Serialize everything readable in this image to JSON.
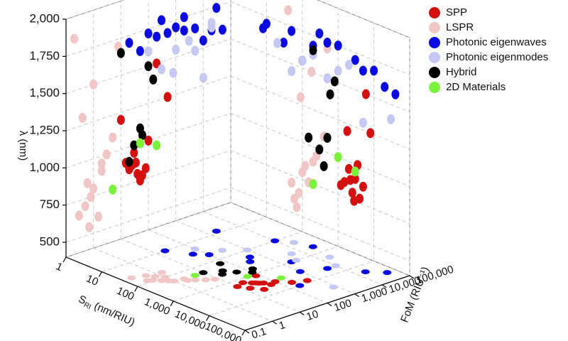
{
  "chart_data": {
    "type": "scatter3d",
    "xlabel": {
      "main": "S",
      "sub": "RI",
      "rest": " (nm/RIU)"
    },
    "ylabel": "FoM (RIU⁻¹)",
    "zlabel": "λ (nm)",
    "xscale": "log",
    "yscale": "log",
    "zscale": "linear",
    "xlim": [
      1,
      100000
    ],
    "xticks": [
      1,
      10,
      100,
      {
        "value": 1000,
        "label": "1,000"
      },
      {
        "value": 10000,
        "label": "10,000"
      },
      {
        "value": 100000,
        "label": "100,000"
      }
    ],
    "ylim": [
      0.1,
      100000
    ],
    "yticks": [
      0.1,
      1,
      10,
      100,
      {
        "value": 1000,
        "label": "1,000"
      },
      {
        "value": 10000,
        "label": "10,000"
      },
      {
        "value": 100000,
        "label": "100,000"
      }
    ],
    "zlim": [
      400,
      2000
    ],
    "zticks": [
      500,
      750,
      {
        "value": 1000,
        "label": "1,000"
      },
      {
        "value": 1250,
        "label": "1,250"
      },
      {
        "value": 1500,
        "label": "1,500"
      },
      {
        "value": 1750,
        "label": "1,750"
      },
      {
        "value": 2000,
        "label": "2,000"
      }
    ],
    "grid": true,
    "legend": "top-right",
    "series": [
      {
        "name": "SPP",
        "color": "#d40f0f",
        "x": [
          1500,
          2500,
          3000,
          4000,
          2000,
          1200,
          5000,
          3500,
          2800,
          1800,
          6000,
          2200,
          8000
        ],
        "y": [
          20,
          40,
          15,
          60,
          30,
          80,
          25,
          100,
          50,
          10,
          200,
          35,
          500
        ],
        "z": [
          850,
          800,
          900,
          780,
          950,
          820,
          870,
          1000,
          750,
          1200,
          1500,
          880,
          1250
        ]
      },
      {
        "name": "LSPR",
        "color": "#f0c6c6",
        "x": [
          50,
          100,
          200,
          80,
          300,
          150,
          60,
          400,
          120,
          250,
          90,
          180,
          40,
          500,
          70
        ],
        "y": [
          0.5,
          1,
          2,
          0.3,
          3,
          0.8,
          1.5,
          5,
          0.6,
          2,
          0.4,
          1,
          0.2,
          8,
          0.7
        ],
        "z": [
          700,
          800,
          900,
          650,
          1000,
          750,
          600,
          1100,
          850,
          950,
          1300,
          1500,
          1850,
          1700,
          550
        ]
      },
      {
        "name": "Photonic eigenwaves",
        "color": "#0a0ae0",
        "x": [
          10,
          50,
          200,
          1000,
          5000,
          20000,
          30,
          300,
          3000,
          100,
          10000,
          500,
          8,
          40000
        ],
        "y": [
          20,
          100,
          500,
          2000,
          5000,
          20000,
          50,
          300,
          1000,
          10000,
          200,
          30000,
          2000,
          50000
        ],
        "z": [
          1700,
          1720,
          1680,
          1750,
          1650,
          1600,
          1620,
          1780,
          1700,
          1550,
          1680,
          1740,
          1660,
          1580
        ]
      },
      {
        "name": "Photonic eigenmodes",
        "color": "#c4c8f2",
        "x": [
          20,
          100,
          500,
          2000,
          50,
          1000,
          5000,
          200,
          30000
        ],
        "y": [
          100,
          1000,
          5000,
          20000,
          300,
          3000,
          10000,
          20000,
          800
        ],
        "z": [
          1600,
          1550,
          1500,
          1650,
          1450,
          1580,
          1300,
          1620,
          1400
        ]
      },
      {
        "name": "Hybrid",
        "color": "#000000",
        "x": [
          300,
          500,
          200,
          800,
          400,
          600,
          150
        ],
        "y": [
          30,
          50,
          10,
          100,
          20,
          150,
          60
        ],
        "z": [
          1000,
          1100,
          1650,
          1500,
          900,
          1400,
          1050
        ]
      },
      {
        "name": "2D Materials",
        "color": "#7cf23c",
        "x": [
          200,
          1000,
          3000
        ],
        "y": [
          5,
          50,
          200
        ],
        "z": [
          750,
          1000,
          950
        ]
      }
    ]
  }
}
